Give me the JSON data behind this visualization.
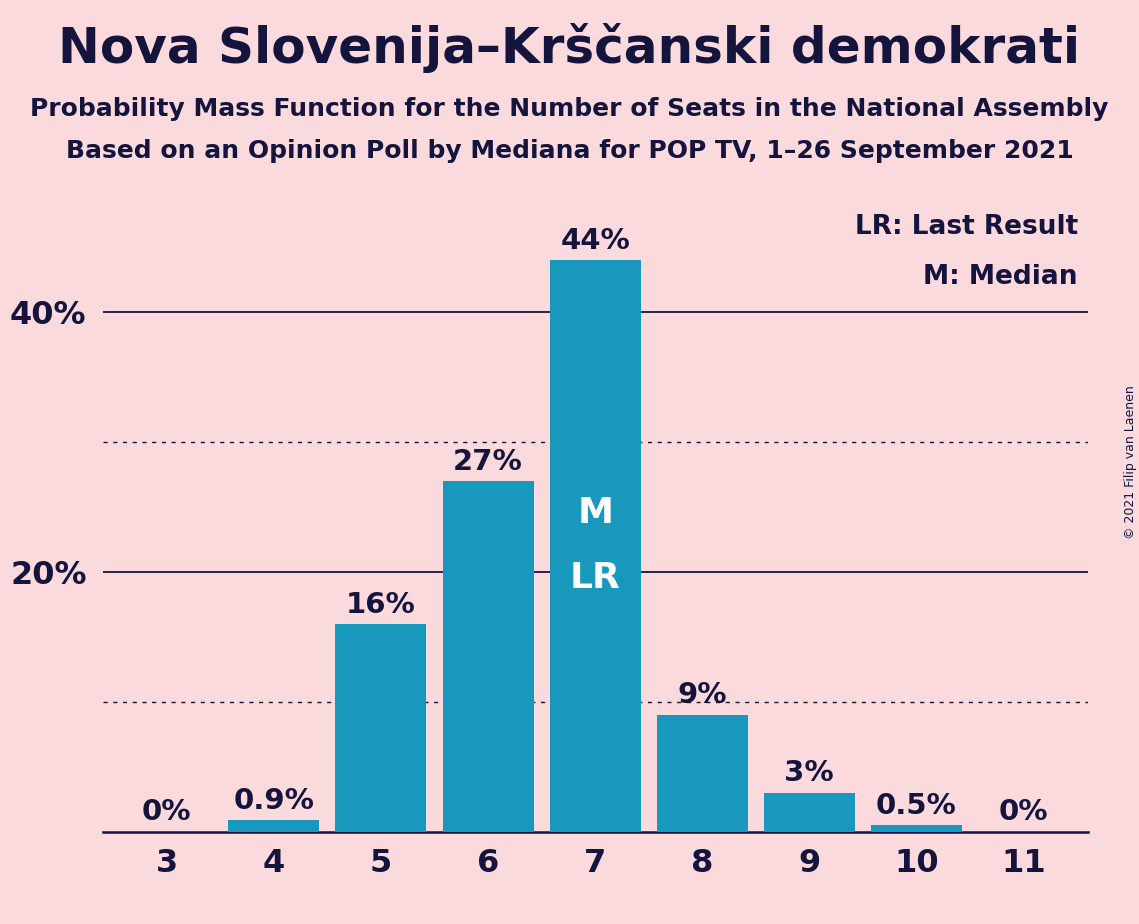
{
  "title": "Nova Slovenija–Krščanski demokrati",
  "subtitle1": "Probability Mass Function for the Number of Seats in the National Assembly",
  "subtitle2": "Based on an Opinion Poll by Mediana for POP TV, 1–26 September 2021",
  "copyright": "© 2021 Filip van Laenen",
  "legend_lr": "LR: Last Result",
  "legend_m": "M: Median",
  "categories": [
    3,
    4,
    5,
    6,
    7,
    8,
    9,
    10,
    11
  ],
  "values": [
    0.0,
    0.9,
    16.0,
    27.0,
    44.0,
    9.0,
    3.0,
    0.5,
    0.0
  ],
  "bar_labels": [
    "0%",
    "0.9%",
    "16%",
    "27%",
    "44%",
    "9%",
    "3%",
    "0.5%",
    "0%"
  ],
  "bar_color": "#1898BC",
  "background_color": "#FADADD",
  "text_color": "#14143c",
  "bar_label_color_dark": "#14143c",
  "bar_label_color_light": "#e8e0f0",
  "median_seat": 7,
  "lr_seat": 7,
  "ylim": [
    0,
    48
  ],
  "solid_gridlines": [
    20,
    40
  ],
  "dotted_gridlines": [
    10,
    30
  ],
  "yticks_labels": [
    "20%",
    "40%"
  ],
  "yticks_values": [
    20,
    40
  ],
  "title_fontsize": 36,
  "subtitle_fontsize": 18,
  "bar_label_fontsize": 21,
  "axis_tick_fontsize": 23,
  "legend_fontsize": 19,
  "ml_fontsize": 26
}
